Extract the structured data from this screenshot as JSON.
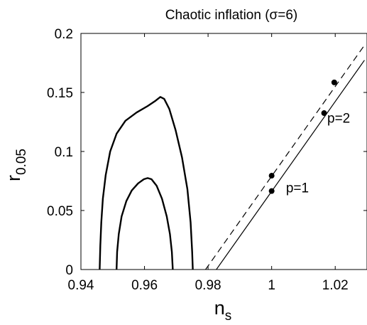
{
  "chart_data": {
    "type": "line",
    "title": "Chaotic inflation (σ=6)",
    "xlabel": {
      "main": "n",
      "sub": "s"
    },
    "ylabel": {
      "main": "r",
      "sub": "0.05"
    },
    "xlim": [
      0.94,
      1.03
    ],
    "ylim": [
      0,
      0.2
    ],
    "xticks": [
      0.94,
      0.96,
      0.98,
      1,
      1.02
    ],
    "xtick_labels": [
      "0.94",
      "0.96",
      "0.98",
      "1",
      "1.02"
    ],
    "yticks": [
      0,
      0.05,
      0.1,
      0.15,
      0.2
    ],
    "ytick_labels": [
      "0",
      "0.05",
      "0.1",
      "0.15",
      "0.2"
    ],
    "grid": false,
    "contours": [
      {
        "level": "outer",
        "points": [
          [
            0.9459,
            0
          ],
          [
            0.9461,
            0.02
          ],
          [
            0.9464,
            0.04
          ],
          [
            0.9469,
            0.06
          ],
          [
            0.9478,
            0.08
          ],
          [
            0.9492,
            0.1
          ],
          [
            0.9512,
            0.115
          ],
          [
            0.954,
            0.126
          ],
          [
            0.9575,
            0.133
          ],
          [
            0.961,
            0.1385
          ],
          [
            0.9635,
            0.143
          ],
          [
            0.965,
            0.1462
          ],
          [
            0.9662,
            0.1445
          ],
          [
            0.9678,
            0.136
          ],
          [
            0.9698,
            0.118
          ],
          [
            0.9718,
            0.095
          ],
          [
            0.9735,
            0.068
          ],
          [
            0.9745,
            0.04
          ],
          [
            0.975,
            0.015
          ],
          [
            0.9752,
            0
          ]
        ]
      },
      {
        "level": "inner",
        "points": [
          [
            0.9512,
            0
          ],
          [
            0.9514,
            0.015
          ],
          [
            0.9519,
            0.03
          ],
          [
            0.9528,
            0.045
          ],
          [
            0.9543,
            0.058
          ],
          [
            0.956,
            0.067
          ],
          [
            0.958,
            0.073
          ],
          [
            0.9598,
            0.0765
          ],
          [
            0.961,
            0.0775
          ],
          [
            0.9622,
            0.0765
          ],
          [
            0.9638,
            0.071
          ],
          [
            0.9655,
            0.06
          ],
          [
            0.967,
            0.045
          ],
          [
            0.968,
            0.03
          ],
          [
            0.9686,
            0.015
          ],
          [
            0.9689,
            0
          ]
        ]
      }
    ],
    "lines": [
      {
        "style": "dashed",
        "points": [
          [
            0.9792,
            0
          ],
          [
            1.0292,
            0.19
          ]
        ]
      },
      {
        "style": "solid",
        "points": [
          [
            0.9826,
            0
          ],
          [
            1.0292,
            0.1773
          ]
        ]
      }
    ],
    "points": [
      {
        "x": 1.0,
        "y": 0.0795
      },
      {
        "x": 1.0,
        "y": 0.0665
      },
      {
        "x": 1.0197,
        "y": 0.1585
      },
      {
        "x": 1.0165,
        "y": 0.1325
      }
    ],
    "annotations": [
      {
        "text": "p=1",
        "x": 1.0045,
        "y": 0.0655
      },
      {
        "text": "p=2",
        "x": 1.0175,
        "y": 0.1245
      }
    ]
  }
}
